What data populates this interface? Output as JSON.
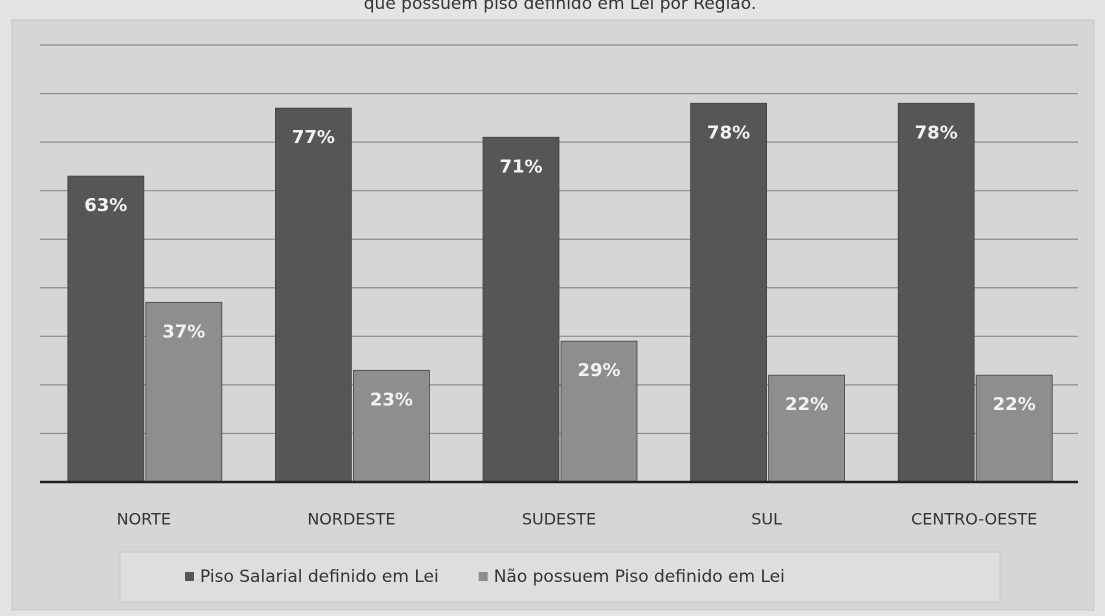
{
  "chart_data": {
    "type": "bar",
    "title": "que possuem piso definido em Lei por Região.",
    "categories": [
      "NORTE",
      "NORDESTE",
      "SUDESTE",
      "SUL",
      "CENTRO-OESTE"
    ],
    "series": [
      {
        "name": "Piso Salarial definido em Lei",
        "color": "#565656",
        "values": [
          63,
          77,
          71,
          78,
          78
        ],
        "value_labels": [
          "63%",
          "77%",
          "71%",
          "78%",
          "78%"
        ]
      },
      {
        "name": "Não possuem Piso definido em Lei",
        "color": "#8e8e8e",
        "values": [
          37,
          23,
          29,
          22,
          22
        ],
        "value_labels": [
          "37%",
          "23%",
          "29%",
          "22%",
          "22%"
        ]
      }
    ],
    "ylim": [
      0,
      90
    ],
    "yticks": [
      0,
      10,
      20,
      30,
      40,
      50,
      60,
      70,
      80,
      90
    ],
    "grid": true,
    "legend": "bottom"
  }
}
